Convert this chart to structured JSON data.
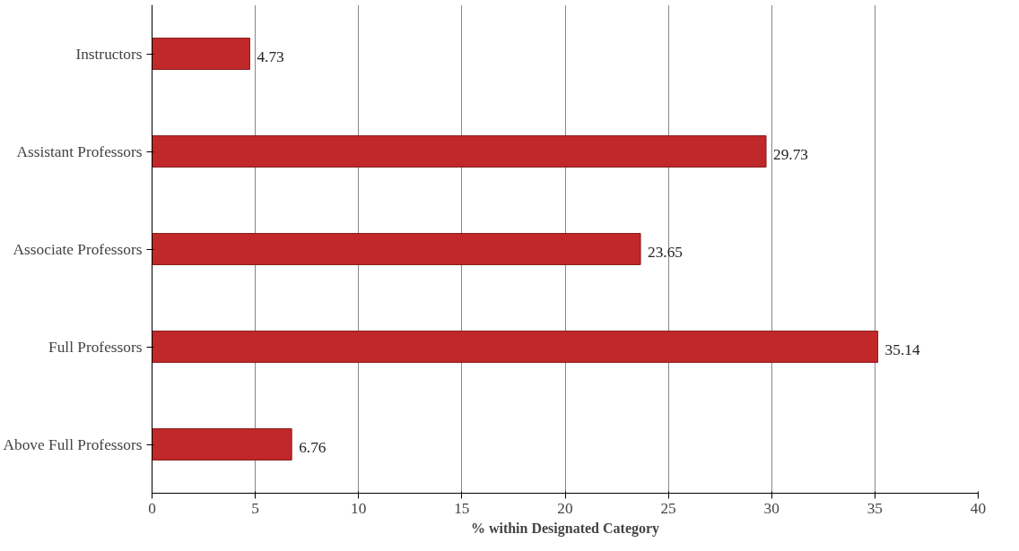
{
  "chart_data": {
    "type": "bar",
    "orientation": "horizontal",
    "xlabel": "% within Designated Category",
    "categories": [
      "Instructors",
      "Assistant Professors",
      "Associate Professors",
      "Full Professors",
      "Above Full Professors"
    ],
    "values": [
      4.73,
      29.73,
      23.65,
      35.14,
      6.76
    ],
    "color": "#c0282a",
    "xlim": [
      0,
      40
    ],
    "xticks": [
      0,
      5,
      10,
      15,
      20,
      25,
      30,
      35,
      40
    ],
    "grid": "x",
    "data_labels": true
  }
}
